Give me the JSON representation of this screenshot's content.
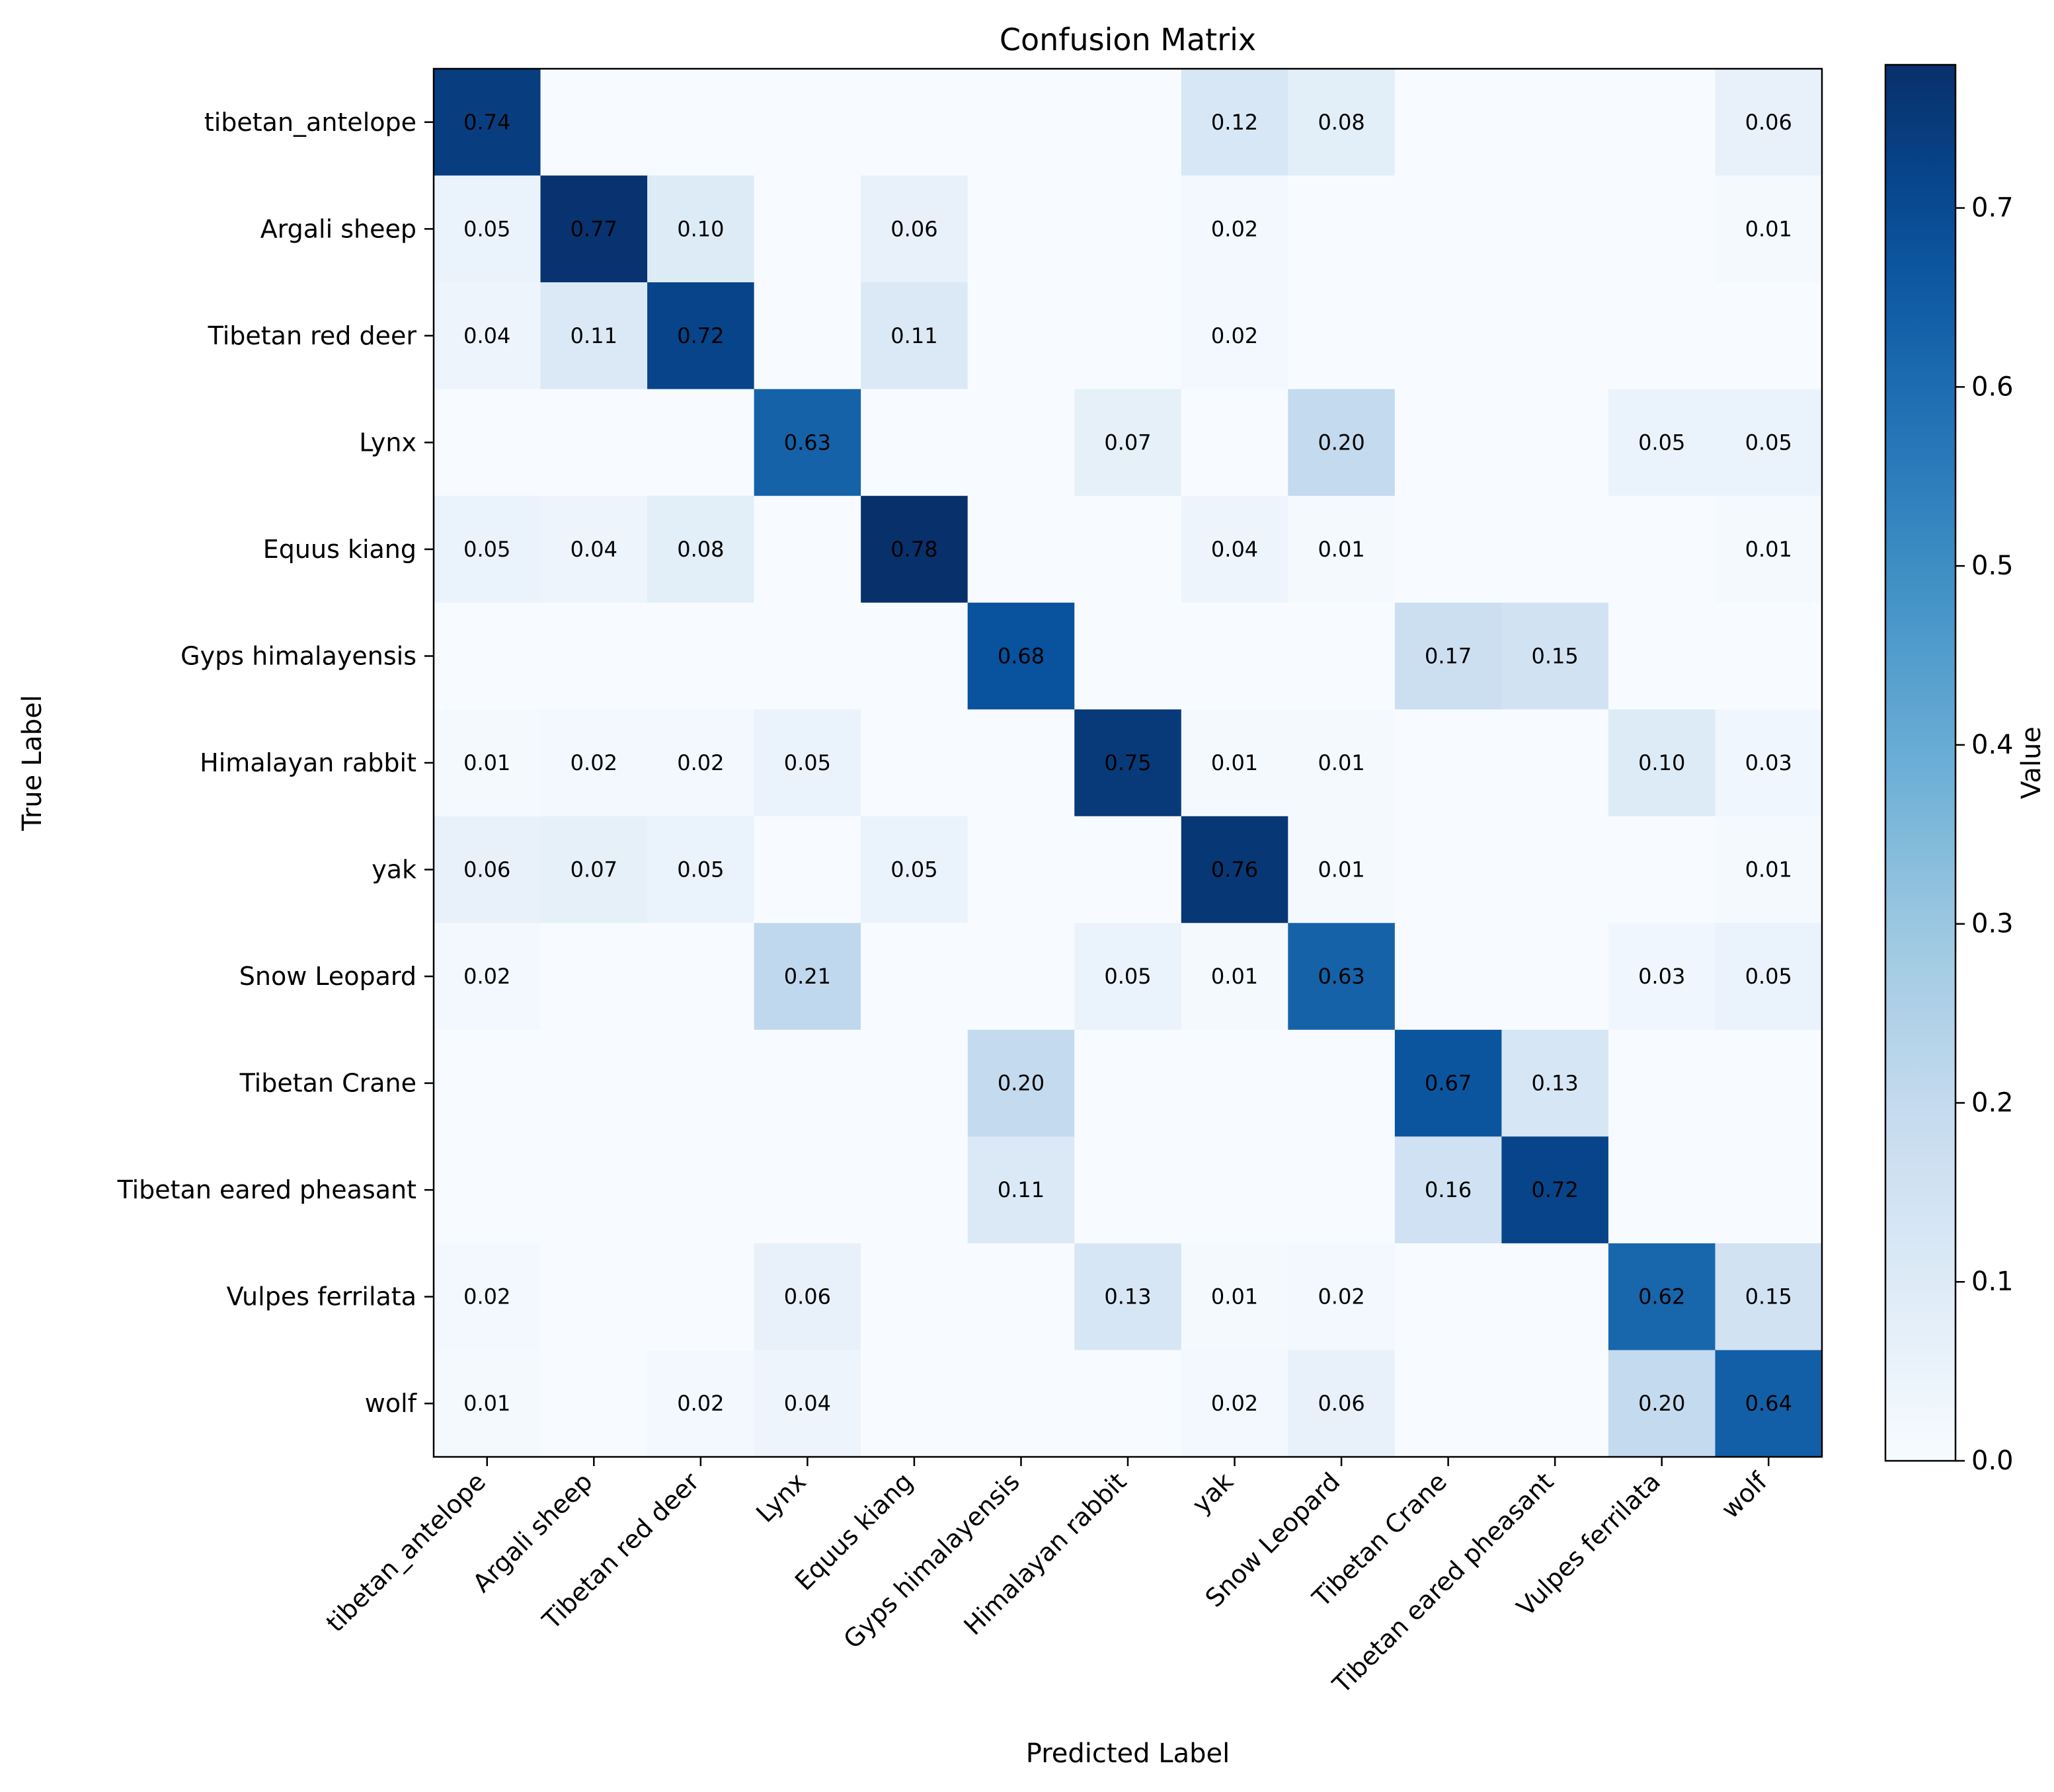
{
  "chart_data": {
    "type": "heatmap",
    "title": "Confusion Matrix",
    "xlabel": "Predicted Label",
    "ylabel": "True Label",
    "colorbar_label": "Value",
    "colormap": "Blues",
    "vmin": 0.0,
    "vmax": 0.78,
    "colorbar_ticks": [
      "0.0",
      "0.1",
      "0.2",
      "0.3",
      "0.4",
      "0.5",
      "0.6",
      "0.7"
    ],
    "labels": [
      "tibetan_antelope",
      "Argali sheep",
      "Tibetan red deer",
      "Lynx",
      "Equus kiang",
      "Gyps himalayensis",
      "Himalayan rabbit",
      "yak",
      "Snow Leopard",
      "Tibetan Crane",
      "Tibetan eared pheasant",
      "Vulpes ferrilata",
      "wolf"
    ],
    "values": [
      [
        0.74,
        0,
        0,
        0,
        0,
        0,
        0,
        0.12,
        0.08,
        0,
        0,
        0,
        0.06
      ],
      [
        0.05,
        0.77,
        0.1,
        0,
        0.06,
        0,
        0,
        0.02,
        0,
        0,
        0,
        0,
        0.01
      ],
      [
        0.04,
        0.11,
        0.72,
        0,
        0.11,
        0,
        0,
        0.02,
        0,
        0,
        0,
        0,
        0
      ],
      [
        0,
        0,
        0,
        0.63,
        0,
        0,
        0.07,
        0,
        0.2,
        0,
        0,
        0.05,
        0.05
      ],
      [
        0.05,
        0.04,
        0.08,
        0,
        0.78,
        0,
        0,
        0.04,
        0.01,
        0,
        0,
        0,
        0.01
      ],
      [
        0,
        0,
        0,
        0,
        0,
        0.68,
        0,
        0,
        0,
        0.17,
        0.15,
        0,
        0
      ],
      [
        0.01,
        0.02,
        0.02,
        0.05,
        0,
        0,
        0.75,
        0.01,
        0.01,
        0,
        0,
        0.1,
        0.03
      ],
      [
        0.06,
        0.07,
        0.05,
        0,
        0.05,
        0,
        0,
        0.76,
        0.01,
        0,
        0,
        0,
        0.01
      ],
      [
        0.02,
        0,
        0,
        0.21,
        0,
        0,
        0.05,
        0.01,
        0.63,
        0,
        0,
        0.03,
        0.05
      ],
      [
        0,
        0,
        0,
        0,
        0,
        0.2,
        0,
        0,
        0,
        0.67,
        0.13,
        0,
        0
      ],
      [
        0,
        0,
        0,
        0,
        0,
        0.11,
        0,
        0,
        0,
        0.16,
        0.72,
        0,
        0
      ],
      [
        0.02,
        0,
        0,
        0.06,
        0,
        0,
        0.13,
        0.01,
        0.02,
        0,
        0,
        0.62,
        0.15
      ],
      [
        0.01,
        0,
        0.02,
        0.04,
        0,
        0,
        0,
        0.02,
        0.06,
        0,
        0,
        0.2,
        0.64
      ]
    ]
  }
}
